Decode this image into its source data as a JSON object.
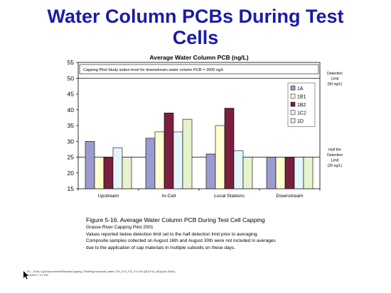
{
  "slide": {
    "title_line1": "Water Column PCBs During Test",
    "title_line2": "Cells"
  },
  "chart_data": {
    "type": "bar",
    "title": "Average Water Column PCB (ng/L)",
    "categories": [
      "Upstream",
      "In-Cell",
      "Local Stations",
      "Downstream"
    ],
    "series": [
      {
        "name": "1A",
        "color": "#9b9bcf",
        "values": [
          30,
          31,
          26,
          25
        ]
      },
      {
        "name": "1B1",
        "color": "#ffffd0",
        "values": [
          25,
          33,
          35,
          25
        ]
      },
      {
        "name": "1B2",
        "color": "#7a1f3d",
        "values": [
          25,
          39,
          40.5,
          25
        ]
      },
      {
        "name": "1C2",
        "color": "#e4f6fb",
        "values": [
          28,
          33,
          27,
          25
        ]
      },
      {
        "name": "1D",
        "color": "#e6f3cc",
        "values": [
          25,
          37,
          25,
          25
        ]
      }
    ],
    "ylim": [
      15,
      55
    ],
    "yticks": [
      "15",
      "20",
      "25",
      "30",
      "35",
      "40",
      "45",
      "50",
      "55"
    ],
    "legend_position": "right",
    "grid": false,
    "reference_lines": [
      {
        "value": 50,
        "label_line1": "Detection",
        "label_line2": "Limit",
        "label_line3": "(50 ng/L)"
      },
      {
        "value": 25,
        "label_line1": "Half the",
        "label_line2": "Detection",
        "label_line3": "Limit",
        "label_line4": "(25 ng/L)"
      }
    ],
    "annotation": "Capping Pilot Study action level for downstream water column PCB = 2000 ng/L"
  },
  "caption": {
    "figure_title": "Figure 5-16.  Average Water Column PCB During Test Cell Capping",
    "line1": "Grasse River Capping Pilot 2001",
    "line2": "Values reported below detection limit set to the half detection limit prior to averaging.",
    "line3": "Composite samples collected on August 16th and August 30th were not included in averages",
    "line4": "due to the application of cap materials in multiple subcells on these days."
  },
  "footer": {
    "line1": "EC - DVAL:CgVoDocuments\\Reports\\Capping_Pilot\\Figures\\avcell_water_F10_F10_F11_F12.xls  QEA-F10_WQc(lot) 000AL",
    "line2": "11/26/01  7:27 PM"
  }
}
